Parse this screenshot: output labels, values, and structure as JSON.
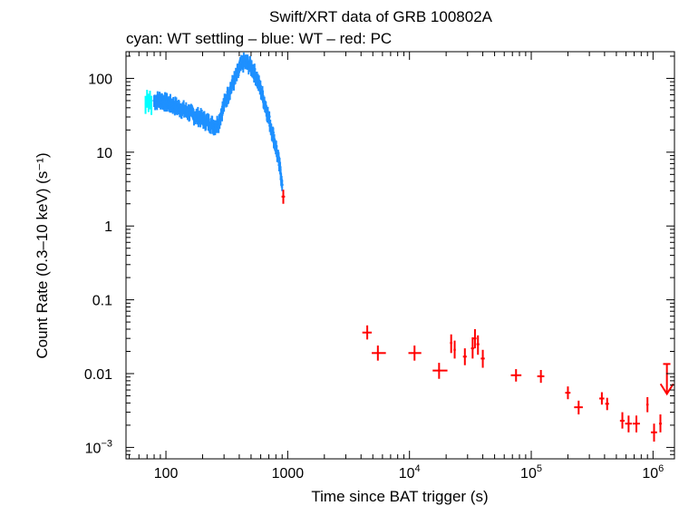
{
  "chart_data": {
    "type": "scatter",
    "title": "Swift/XRT data of GRB 100802A",
    "subtitle": "cyan: WT settling – blue: WT – red: PC",
    "xlabel": "Time since BAT trigger (s)",
    "ylabel": "Count Rate (0.3–10 keV) (s⁻¹)",
    "xscale": "log",
    "yscale": "log",
    "xlim": [
      47,
      1500000
    ],
    "ylim": [
      0.0007,
      230
    ],
    "x_ticks": [
      {
        "value": 100,
        "label": "100"
      },
      {
        "value": 1000,
        "label": "1000"
      },
      {
        "value": 10000,
        "base": "10",
        "exp": "4"
      },
      {
        "value": 100000,
        "base": "10",
        "exp": "5"
      },
      {
        "value": 1000000,
        "base": "10",
        "exp": "6"
      }
    ],
    "y_ticks": [
      {
        "value": 100,
        "label": "100"
      },
      {
        "value": 10,
        "label": "10"
      },
      {
        "value": 1,
        "label": "1"
      },
      {
        "value": 0.1,
        "label": "0.1"
      },
      {
        "value": 0.01,
        "label": "0.01"
      },
      {
        "value": 0.001,
        "base": "10",
        "exp": "−3"
      }
    ],
    "series": [
      {
        "name": "WT settling",
        "color": "#00ffff",
        "points": [
          {
            "x": 68,
            "y": 45,
            "xlo": 67,
            "xhi": 69,
            "ylo": 33,
            "yhi": 58
          },
          {
            "x": 70,
            "y": 55,
            "xlo": 69,
            "xhi": 71,
            "ylo": 40,
            "yhi": 70
          },
          {
            "x": 72,
            "y": 48,
            "xlo": 71,
            "xhi": 73,
            "ylo": 35,
            "yhi": 62
          },
          {
            "x": 74,
            "y": 52,
            "xlo": 73,
            "xhi": 75,
            "ylo": 38,
            "yhi": 68
          },
          {
            "x": 76,
            "y": 44,
            "xlo": 75,
            "xhi": 77,
            "ylo": 32,
            "yhi": 58
          }
        ]
      },
      {
        "name": "WT",
        "color": "#1e90ff",
        "curve": [
          [
            80,
            50
          ],
          [
            90,
            52
          ],
          [
            100,
            48
          ],
          [
            115,
            44
          ],
          [
            130,
            40
          ],
          [
            150,
            36
          ],
          [
            170,
            32
          ],
          [
            190,
            30
          ],
          [
            210,
            27
          ],
          [
            230,
            25
          ],
          [
            250,
            23
          ],
          [
            270,
            25
          ],
          [
            300,
            45
          ],
          [
            340,
            75
          ],
          [
            380,
            110
          ],
          [
            410,
            150
          ],
          [
            440,
            170
          ],
          [
            470,
            160
          ],
          [
            510,
            140
          ],
          [
            560,
            100
          ],
          [
            620,
            60
          ],
          [
            680,
            35
          ],
          [
            740,
            20
          ],
          [
            800,
            12
          ],
          [
            850,
            7
          ],
          [
            900,
            4
          ]
        ],
        "scatter_fraction": 0.18
      },
      {
        "name": "PC",
        "color": "#ff0000",
        "points": [
          {
            "x": 920,
            "y": 2.5,
            "xlo": 890,
            "xhi": 950,
            "ylo": 2.0,
            "yhi": 3.1
          },
          {
            "x": 4500,
            "y": 0.036,
            "xlo": 4100,
            "xhi": 4900,
            "ylo": 0.029,
            "yhi": 0.045
          },
          {
            "x": 5500,
            "y": 0.019,
            "xlo": 4900,
            "xhi": 6400,
            "ylo": 0.015,
            "yhi": 0.024
          },
          {
            "x": 11000,
            "y": 0.019,
            "xlo": 9800,
            "xhi": 12500,
            "ylo": 0.015,
            "yhi": 0.024
          },
          {
            "x": 17500,
            "y": 0.011,
            "xlo": 15500,
            "xhi": 20500,
            "ylo": 0.0085,
            "yhi": 0.014
          },
          {
            "x": 22000,
            "y": 0.026,
            "xlo": 21500,
            "xhi": 22500,
            "ylo": 0.019,
            "yhi": 0.034
          },
          {
            "x": 23500,
            "y": 0.021,
            "xlo": 23000,
            "xhi": 24000,
            "ylo": 0.016,
            "yhi": 0.028
          },
          {
            "x": 28500,
            "y": 0.017,
            "xlo": 27500,
            "xhi": 29500,
            "ylo": 0.013,
            "yhi": 0.022
          },
          {
            "x": 33000,
            "y": 0.022,
            "xlo": 32000,
            "xhi": 34000,
            "ylo": 0.016,
            "yhi": 0.031
          },
          {
            "x": 34500,
            "y": 0.03,
            "xlo": 33500,
            "xhi": 35500,
            "ylo": 0.022,
            "yhi": 0.04
          },
          {
            "x": 36500,
            "y": 0.025,
            "xlo": 35500,
            "xhi": 37500,
            "ylo": 0.018,
            "yhi": 0.033
          },
          {
            "x": 40000,
            "y": 0.016,
            "xlo": 38500,
            "xhi": 41500,
            "ylo": 0.012,
            "yhi": 0.021
          },
          {
            "x": 75000,
            "y": 0.0095,
            "xlo": 68000,
            "xhi": 83000,
            "ylo": 0.0078,
            "yhi": 0.0115
          },
          {
            "x": 120000,
            "y": 0.0092,
            "xlo": 112000,
            "xhi": 128000,
            "ylo": 0.0075,
            "yhi": 0.0112
          },
          {
            "x": 200000,
            "y": 0.0055,
            "xlo": 190000,
            "xhi": 210000,
            "ylo": 0.0045,
            "yhi": 0.0067
          },
          {
            "x": 245000,
            "y": 0.0035,
            "xlo": 225000,
            "xhi": 265000,
            "ylo": 0.0028,
            "yhi": 0.0043
          },
          {
            "x": 380000,
            "y": 0.0046,
            "xlo": 362000,
            "xhi": 398000,
            "ylo": 0.0038,
            "yhi": 0.0056
          },
          {
            "x": 420000,
            "y": 0.0039,
            "xlo": 405000,
            "xhi": 435000,
            "ylo": 0.0032,
            "yhi": 0.0047
          },
          {
            "x": 560000,
            "y": 0.0023,
            "xlo": 535000,
            "xhi": 585000,
            "ylo": 0.0018,
            "yhi": 0.003
          },
          {
            "x": 630000,
            "y": 0.0021,
            "xlo": 590000,
            "xhi": 670000,
            "ylo": 0.0016,
            "yhi": 0.0027
          },
          {
            "x": 730000,
            "y": 0.0021,
            "xlo": 680000,
            "xhi": 780000,
            "ylo": 0.0016,
            "yhi": 0.0027
          },
          {
            "x": 900000,
            "y": 0.0038,
            "xlo": 880000,
            "xhi": 920000,
            "ylo": 0.003,
            "yhi": 0.0048
          },
          {
            "x": 1020000,
            "y": 0.0016,
            "xlo": 960000,
            "xhi": 1080000,
            "ylo": 0.0012,
            "yhi": 0.0021
          },
          {
            "x": 1150000,
            "y": 0.0021,
            "xlo": 1120000,
            "xhi": 1180000,
            "ylo": 0.0016,
            "yhi": 0.0028
          }
        ],
        "upper_limits": [
          {
            "x": 1300000,
            "y": 0.0135,
            "xlo": 1210000,
            "xhi": 1390000
          }
        ]
      }
    ]
  }
}
